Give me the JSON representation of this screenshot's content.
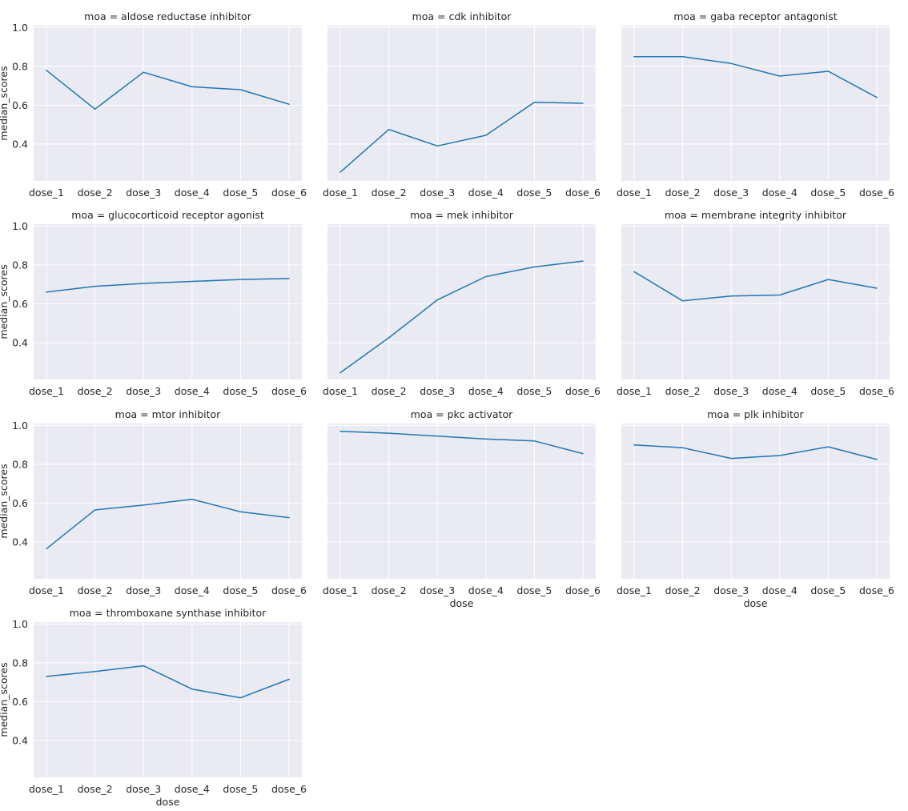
{
  "chart_data": {
    "type": "line",
    "x_label": "dose",
    "y_label": "median_scores",
    "categories": [
      "dose_1",
      "dose_2",
      "dose_3",
      "dose_4",
      "dose_5",
      "dose_6"
    ],
    "y_ticks": [
      0.4,
      0.6,
      0.8,
      1.0
    ],
    "y_tick_labels": [
      "0.4",
      "0.6",
      "0.8",
      "1.0"
    ],
    "ylim": [
      0.21,
      1.01
    ],
    "grid": true,
    "line_color": "#1f77b4",
    "panel_bg": "#eaeaf2",
    "panels": [
      {
        "title": "moa = aldose reductase inhibitor",
        "values": [
          0.78,
          0.58,
          0.77,
          0.695,
          0.68,
          0.605
        ]
      },
      {
        "title": "moa = cdk inhibitor",
        "values": [
          0.255,
          0.475,
          0.39,
          0.445,
          0.615,
          0.61
        ]
      },
      {
        "title": "moa = gaba receptor antagonist",
        "values": [
          0.85,
          0.85,
          0.815,
          0.75,
          0.775,
          0.64
        ]
      },
      {
        "title": "moa = glucocorticoid receptor agonist",
        "values": [
          0.66,
          0.69,
          0.705,
          0.715,
          0.725,
          0.73
        ]
      },
      {
        "title": "moa = mek inhibitor",
        "values": [
          0.245,
          0.425,
          0.62,
          0.74,
          0.79,
          0.82
        ]
      },
      {
        "title": "moa = membrane integrity inhibitor",
        "values": [
          0.765,
          0.615,
          0.64,
          0.645,
          0.725,
          0.68
        ]
      },
      {
        "title": "moa = mtor inhibitor",
        "values": [
          0.365,
          0.565,
          0.59,
          0.62,
          0.555,
          0.525
        ]
      },
      {
        "title": "moa = pkc activator",
        "values": [
          0.97,
          0.96,
          0.945,
          0.93,
          0.92,
          0.855
        ]
      },
      {
        "title": "moa = plk inhibitor",
        "values": [
          0.9,
          0.885,
          0.83,
          0.845,
          0.89,
          0.825
        ]
      },
      {
        "title": "moa = thromboxane synthase inhibitor",
        "values": [
          0.73,
          0.755,
          0.785,
          0.665,
          0.62,
          0.715
        ]
      }
    ]
  }
}
